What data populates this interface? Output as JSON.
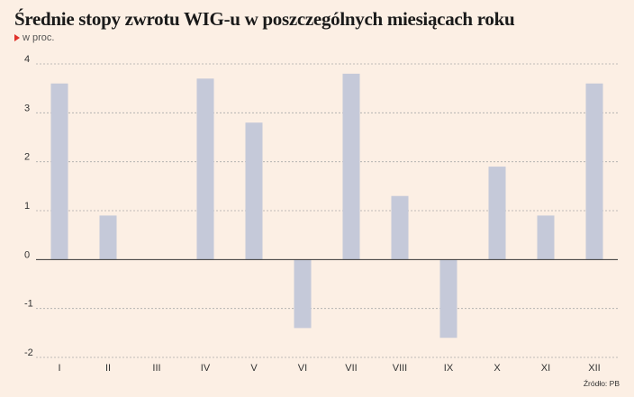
{
  "header": {
    "title": "Średnie stopy zwrotu WIG-u w poszczególnych miesiącach roku",
    "unit": "w proc."
  },
  "footer": {
    "source": "Źródło: PB"
  },
  "colors": {
    "background": "#fcefe4",
    "bar": "#c5c9d9",
    "unit_marker": "#e0322b",
    "gridline": "#aaaaaa",
    "zero_line": "#333333"
  },
  "chart_data": {
    "type": "bar",
    "title": "Średnie stopy zwrotu WIG-u w poszczególnych miesiącach roku",
    "ylabel": "w proc.",
    "xlabel": "",
    "categories": [
      "I",
      "II",
      "III",
      "IV",
      "V",
      "VI",
      "VII",
      "VIII",
      "IX",
      "X",
      "XI",
      "XII"
    ],
    "values": [
      3.6,
      0.9,
      0.0,
      3.7,
      2.8,
      -1.4,
      3.8,
      1.3,
      -1.6,
      1.9,
      0.9,
      3.6
    ],
    "ylim": [
      -2,
      4
    ],
    "yticks": [
      "-2",
      "-1",
      "0",
      "1",
      "2",
      "3",
      "4"
    ],
    "grid": true,
    "legend": "none"
  }
}
